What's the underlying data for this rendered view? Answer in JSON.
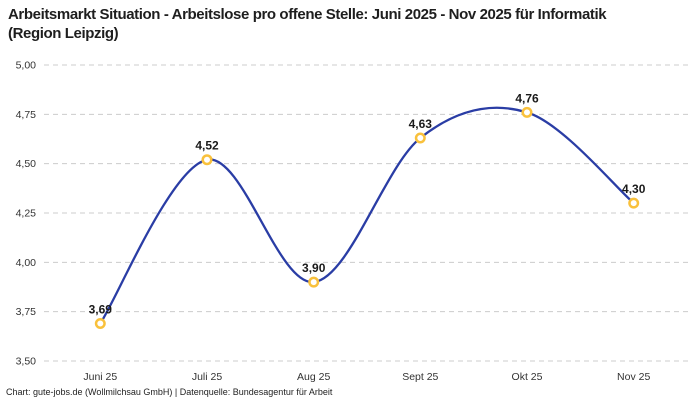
{
  "header": {
    "title": "Arbeitsmarkt Situation - Arbeitslose pro offene Stelle: Juni 2025 - Nov 2025 für Informatik (Region Leipzig)"
  },
  "footer": {
    "attribution": "Chart: gute-jobs.de (Wollmilchsau GmbH) | Datenquelle: Bundesagentur für Arbeit"
  },
  "chart_data": {
    "type": "line",
    "title": "Arbeitsmarkt Situation - Arbeitslose pro offene Stelle: Juni 2025 - Nov 2025 für Informatik (Region Leipzig)",
    "categories": [
      "Juni 25",
      "Juli 25",
      "Aug 25",
      "Sept 25",
      "Okt 25",
      "Nov 25"
    ],
    "values": [
      3.69,
      4.52,
      3.9,
      4.63,
      4.76,
      4.3
    ],
    "value_labels": [
      "3,69",
      "4,52",
      "3,90",
      "4,63",
      "4,76",
      "4,30"
    ],
    "ytick_values": [
      5.0,
      4.75,
      4.5,
      4.25,
      4.0,
      3.75,
      3.5
    ],
    "ytick_labels": [
      "5,00",
      "4,75",
      "4,50",
      "4,25",
      "4,00",
      "3,75",
      "3,50"
    ],
    "ylim": [
      3.5,
      5.0
    ],
    "xlabel": "",
    "ylabel": "",
    "grid": "horizontal-dashed",
    "legend": "none",
    "smooth": true,
    "colors": {
      "line": "#2a3da5",
      "marker": "#f9c13c",
      "marker_fill": "#ffffff",
      "grid": "#cccccc",
      "label": "#1a1a1a",
      "tick": "#333333"
    }
  }
}
